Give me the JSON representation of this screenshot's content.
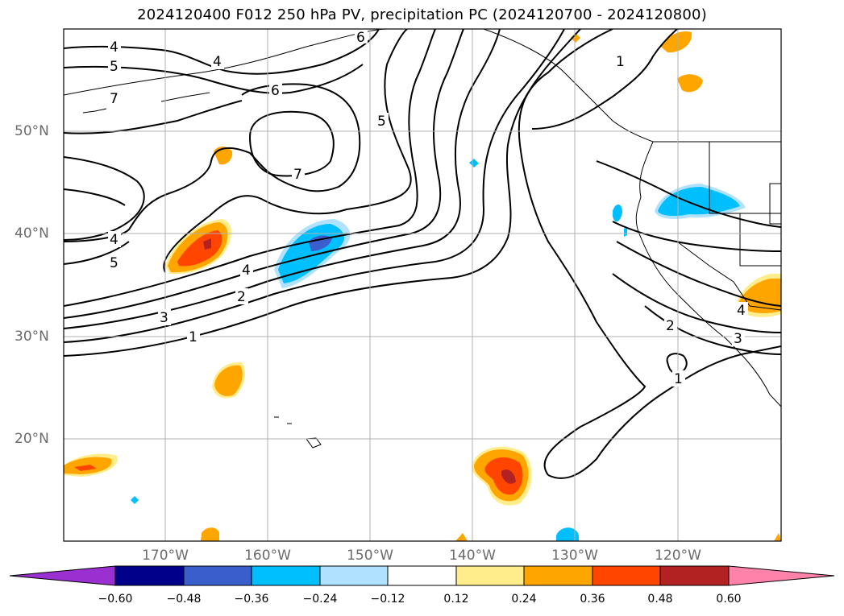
{
  "title": "2024120400 F012 250 hPa PV, precipitation PC (2024120700 - 2024120800)",
  "lat_labels": [
    "50°N",
    "40°N",
    "30°N",
    "20°N"
  ],
  "lon_labels": [
    "170°W",
    "160°W",
    "150°W",
    "140°W",
    "130°W",
    "120°W"
  ],
  "contour_labels": [
    "4",
    "5",
    "7",
    "4",
    "6",
    "6",
    "7",
    "5",
    "4",
    "5",
    "4",
    "3",
    "2",
    "1",
    "1",
    "2",
    "3",
    "1",
    "4"
  ],
  "colorbar": {
    "ticks": [
      "−0.60",
      "−0.48",
      "−0.36",
      "−0.24",
      "−0.12",
      "0.12",
      "0.24",
      "0.36",
      "0.48",
      "0.60"
    ],
    "colors": [
      "#9b30d0",
      "#00008b",
      "#3a5fcd",
      "#00bfff",
      "#b0e2ff",
      "#ffffff",
      "#ffec8b",
      "#ffa500",
      "#ff4500",
      "#b22222",
      "#ff82ab"
    ]
  }
}
